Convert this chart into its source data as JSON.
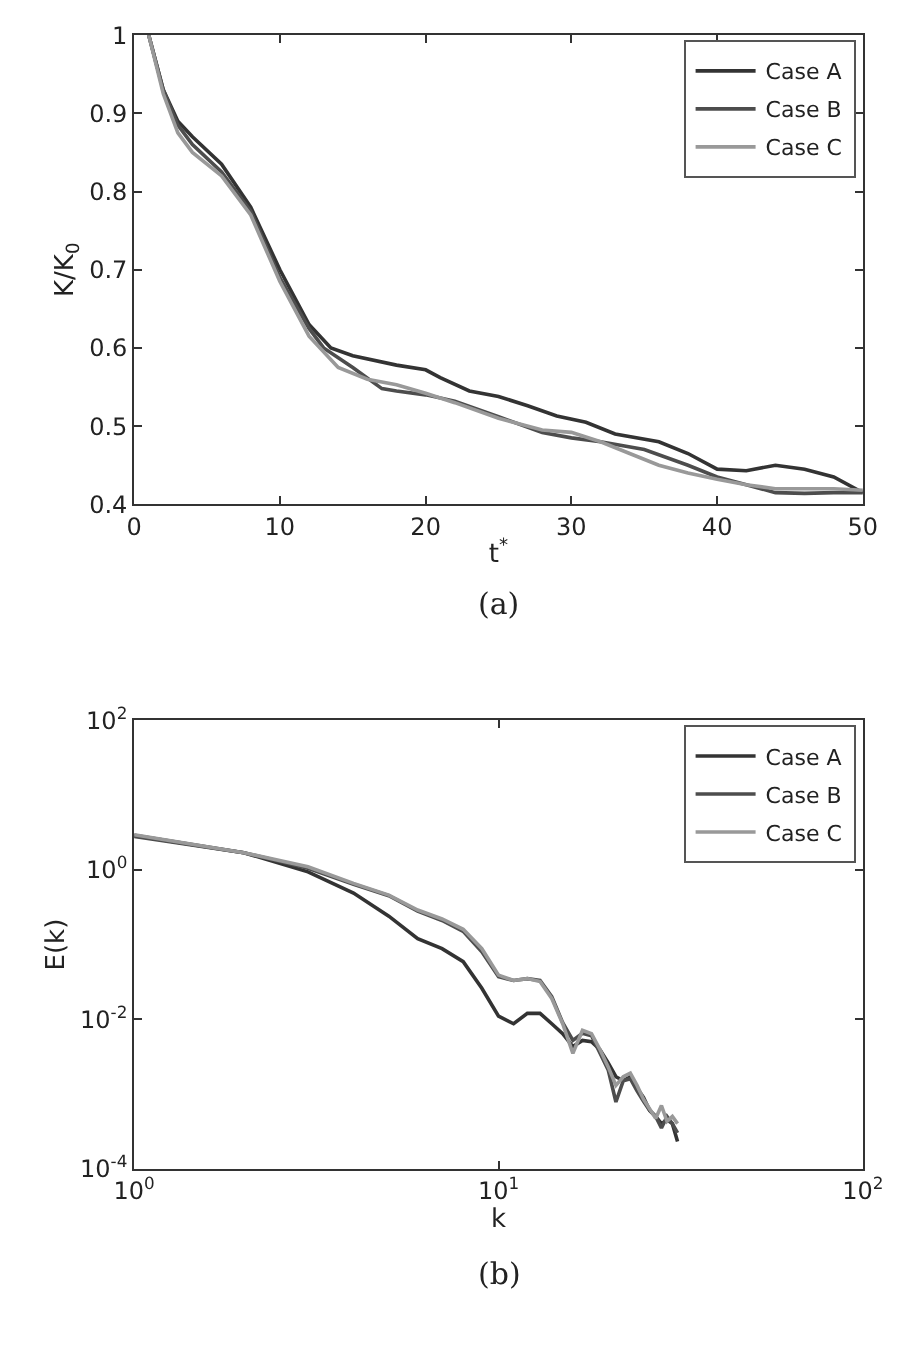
{
  "chart_data": [
    {
      "type": "line",
      "xlabel": "t$^{*}$",
      "ylabel": "K/K$_{0}$",
      "annotations": [
        "(a)"
      ],
      "xlim": [
        0,
        50
      ],
      "ylim": [
        0.4,
        1
      ],
      "xticks": [
        0,
        10,
        20,
        30,
        40,
        50
      ],
      "yticks": [
        0.4,
        0.5,
        0.6,
        0.7,
        0.8,
        0.9,
        1
      ],
      "legend": "top right",
      "marker": "none",
      "line_style": "solid",
      "series": [
        {
          "name": "Case A",
          "color": "#333333",
          "x": [
            1,
            2,
            3,
            4,
            6,
            8,
            10,
            12,
            13.5,
            15,
            18,
            20,
            21,
            23,
            25,
            27,
            29,
            31,
            33,
            36,
            38,
            40,
            42,
            44,
            46,
            48,
            50
          ],
          "values": [
            1.0,
            0.93,
            0.89,
            0.87,
            0.835,
            0.78,
            0.7,
            0.63,
            0.6,
            0.59,
            0.578,
            0.572,
            0.562,
            0.545,
            0.538,
            0.526,
            0.513,
            0.505,
            0.49,
            0.48,
            0.465,
            0.445,
            0.443,
            0.45,
            0.445,
            0.435,
            0.415
          ]
        },
        {
          "name": "Case B",
          "color": "#4d4d4d",
          "x": [
            1,
            2,
            3,
            4,
            6,
            8,
            10,
            12,
            13,
            15,
            17,
            18,
            20,
            22,
            25,
            28,
            30,
            32,
            35,
            38,
            40,
            42,
            44,
            46,
            48,
            50
          ],
          "values": [
            1.0,
            0.93,
            0.885,
            0.86,
            0.825,
            0.775,
            0.69,
            0.625,
            0.6,
            0.575,
            0.548,
            0.545,
            0.54,
            0.532,
            0.512,
            0.492,
            0.485,
            0.48,
            0.47,
            0.45,
            0.435,
            0.425,
            0.415,
            0.414,
            0.415,
            0.415
          ]
        },
        {
          "name": "Case C",
          "color": "#999999",
          "x": [
            1,
            2,
            3,
            4,
            6,
            8,
            10,
            12,
            14,
            16,
            18,
            20,
            22,
            25,
            28,
            30,
            32,
            34,
            36,
            38,
            40,
            42,
            44,
            46,
            48,
            50
          ],
          "values": [
            1.0,
            0.925,
            0.875,
            0.85,
            0.82,
            0.77,
            0.685,
            0.615,
            0.575,
            0.56,
            0.553,
            0.542,
            0.53,
            0.51,
            0.495,
            0.492,
            0.48,
            0.465,
            0.45,
            0.44,
            0.432,
            0.425,
            0.42,
            0.42,
            0.42,
            0.418
          ]
        }
      ]
    },
    {
      "type": "line",
      "xlabel": "k",
      "ylabel": "E(k)",
      "annotations": [
        "(b)"
      ],
      "log": "xy",
      "xlim": [
        1,
        100
      ],
      "ylim": [
        0.0001,
        100
      ],
      "xticks": [
        {
          "value": 1,
          "label": "10$^{0}$"
        },
        {
          "value": 10,
          "label": "10$^{1}$"
        },
        {
          "value": 100,
          "label": "10$^{2}$"
        }
      ],
      "yticks": [
        {
          "value": 0.0001,
          "label": "10$^{-4}$"
        },
        {
          "value": 0.01,
          "label": "10$^{-2}$"
        },
        {
          "value": 1,
          "label": "10$^{0}$"
        },
        {
          "value": 100,
          "label": "10$^{2}$"
        }
      ],
      "legend": "top right",
      "marker": "none",
      "line_style": "solid",
      "series": [
        {
          "name": "Case A",
          "color": "#333333",
          "x": [
            1,
            2,
            3,
            4,
            5,
            6,
            7,
            8,
            9,
            10,
            11,
            12,
            13,
            14,
            15,
            16,
            17,
            18,
            19,
            20,
            21,
            22,
            23,
            24,
            25,
            26,
            27,
            28,
            29,
            30,
            31
          ],
          "values": [
            2.9,
            1.7,
            0.94,
            0.49,
            0.24,
            0.12,
            0.088,
            0.059,
            0.026,
            0.011,
            0.0087,
            0.012,
            0.012,
            0.0087,
            0.0064,
            0.0043,
            0.0052,
            0.005,
            0.0039,
            0.0026,
            0.0017,
            0.0015,
            0.0017,
            0.0012,
            0.0009,
            0.0006,
            0.0005,
            0.0004,
            0.00045,
            0.0004,
            0.00023
          ]
        },
        {
          "name": "Case B",
          "color": "#4d4d4d",
          "x": [
            1,
            2,
            3,
            4,
            5,
            6,
            7,
            8,
            9,
            10,
            11,
            12,
            13,
            14,
            15,
            16,
            17,
            18,
            19,
            20,
            21,
            22,
            23,
            24,
            25,
            26,
            27,
            28,
            29,
            30,
            31
          ],
          "values": [
            2.8,
            1.7,
            1.05,
            0.64,
            0.45,
            0.28,
            0.21,
            0.15,
            0.08,
            0.037,
            0.033,
            0.035,
            0.033,
            0.02,
            0.009,
            0.0052,
            0.0065,
            0.006,
            0.0035,
            0.0021,
            0.00078,
            0.0015,
            0.0016,
            0.0011,
            0.0008,
            0.0006,
            0.0005,
            0.00035,
            0.0005,
            0.0004,
            0.0003
          ]
        },
        {
          "name": "Case C",
          "color": "#999999",
          "x": [
            1,
            2,
            3,
            4,
            5,
            6,
            7,
            8,
            9,
            10,
            11,
            12,
            13,
            14,
            15,
            16,
            17,
            18,
            19,
            20,
            21,
            22,
            23,
            24,
            25,
            26,
            27,
            28,
            29,
            30,
            31
          ],
          "values": [
            2.95,
            1.7,
            1.1,
            0.66,
            0.46,
            0.29,
            0.22,
            0.16,
            0.088,
            0.039,
            0.033,
            0.035,
            0.032,
            0.019,
            0.0087,
            0.0035,
            0.0071,
            0.0064,
            0.0039,
            0.0023,
            0.0013,
            0.0017,
            0.0019,
            0.0013,
            0.00085,
            0.00063,
            0.00047,
            0.0007,
            0.00043,
            0.0005,
            0.0004
          ]
        }
      ]
    }
  ]
}
